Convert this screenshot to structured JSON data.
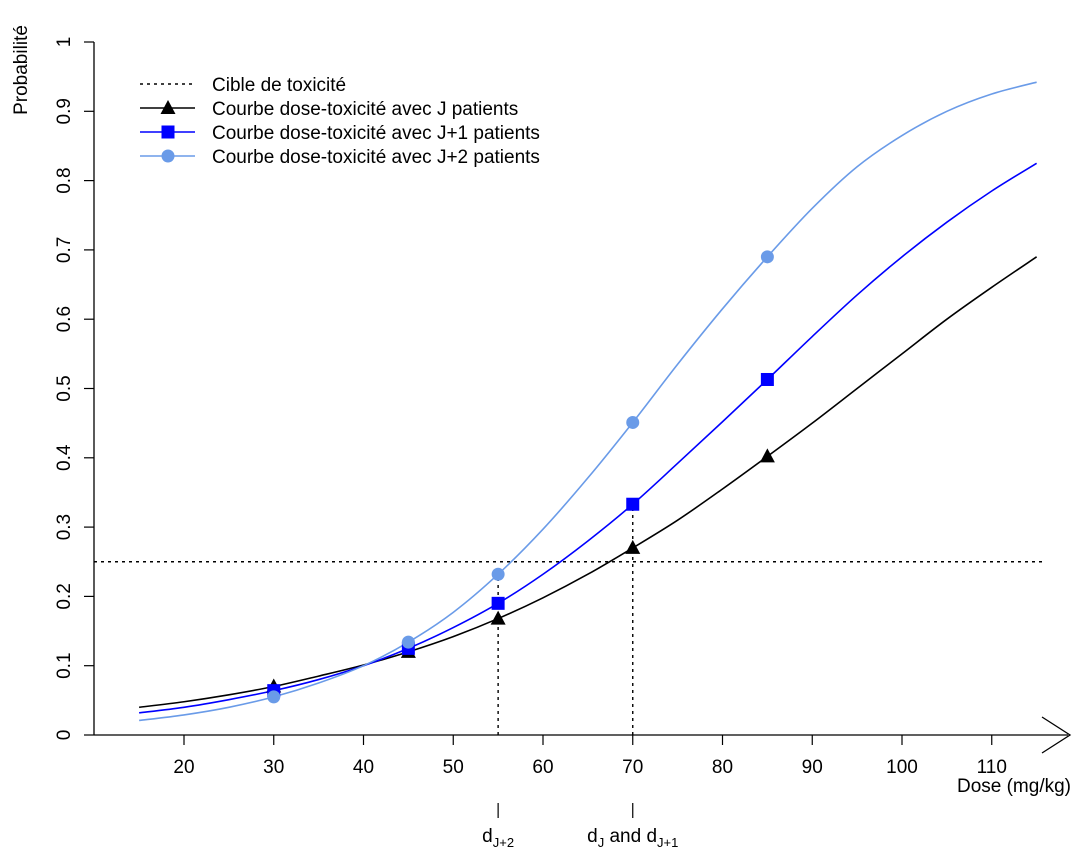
{
  "chart_data": {
    "type": "line",
    "xlabel": "Dose (mg/kg)",
    "ylabel": "Probabilité",
    "xlim": [
      10,
      115
    ],
    "ylim": [
      0,
      1
    ],
    "x_ticks": [
      20,
      30,
      40,
      50,
      60,
      70,
      80,
      90,
      100,
      110
    ],
    "y_ticks": [
      0,
      0.1,
      0.2,
      0.3,
      0.4,
      0.5,
      0.6,
      0.7,
      0.8,
      0.9,
      1
    ],
    "y_tick_labels": [
      "0",
      "0.1",
      "0.2",
      "0.3",
      "0.4",
      "0.5",
      "0.6",
      "0.7",
      "0.8",
      "0.9",
      "1"
    ],
    "grid": false,
    "legend_position": "top-left",
    "target": {
      "name": "Cible de toxicité",
      "y": 0.25,
      "color": "#000000",
      "style": "dotted"
    },
    "series": [
      {
        "name": "Courbe dose-toxicité avec J patients",
        "color": "#000000",
        "marker": "triangle",
        "points": {
          "x": [
            30,
            45,
            55,
            70,
            85
          ],
          "y": [
            0.07,
            0.12,
            0.168,
            0.27,
            0.402
          ]
        },
        "curve": {
          "x": [
            15,
            20,
            25,
            30,
            35,
            40,
            45,
            50,
            55,
            60,
            65,
            70,
            75,
            80,
            85,
            90,
            95,
            100,
            105,
            110,
            115
          ],
          "y": [
            0.04,
            0.048,
            0.058,
            0.07,
            0.085,
            0.101,
            0.12,
            0.142,
            0.168,
            0.198,
            0.232,
            0.27,
            0.31,
            0.355,
            0.402,
            0.45,
            0.5,
            0.55,
            0.6,
            0.646,
            0.69
          ]
        }
      },
      {
        "name": "Courbe dose-toxicité avec J+1 patients",
        "color": "#0000ff",
        "marker": "square",
        "points": {
          "x": [
            30,
            45,
            55,
            70,
            85
          ],
          "y": [
            0.064,
            0.125,
            0.19,
            0.333,
            0.513
          ]
        },
        "curve": {
          "x": [
            15,
            20,
            25,
            30,
            35,
            40,
            45,
            50,
            55,
            60,
            65,
            70,
            75,
            80,
            85,
            90,
            95,
            100,
            105,
            110,
            115
          ],
          "y": [
            0.032,
            0.04,
            0.051,
            0.064,
            0.08,
            0.1,
            0.125,
            0.155,
            0.19,
            0.232,
            0.28,
            0.333,
            0.392,
            0.452,
            0.513,
            0.575,
            0.635,
            0.69,
            0.74,
            0.785,
            0.825
          ]
        }
      },
      {
        "name": "Courbe dose-toxicité avec J+2 patients",
        "color": "#6a9be8",
        "marker": "circle",
        "points": {
          "x": [
            30,
            45,
            55,
            70,
            85
          ],
          "y": [
            0.055,
            0.134,
            0.232,
            0.451,
            0.69
          ]
        },
        "curve": {
          "x": [
            15,
            20,
            25,
            30,
            35,
            40,
            45,
            50,
            55,
            60,
            65,
            70,
            75,
            80,
            85,
            90,
            95,
            100,
            105,
            110,
            115
          ],
          "y": [
            0.021,
            0.029,
            0.04,
            0.055,
            0.075,
            0.1,
            0.134,
            0.177,
            0.232,
            0.297,
            0.371,
            0.451,
            0.535,
            0.615,
            0.69,
            0.76,
            0.82,
            0.865,
            0.9,
            0.925,
            0.942
          ]
        }
      }
    ],
    "dose_markers": [
      {
        "x": 55,
        "y": 0.232,
        "label_main": "d",
        "label_sub": "J+2"
      },
      {
        "x": 70,
        "y": 0.333,
        "label_main": "d",
        "label_sub": "J",
        "label_mid": " and d",
        "label_sub2": "J+1"
      }
    ]
  }
}
